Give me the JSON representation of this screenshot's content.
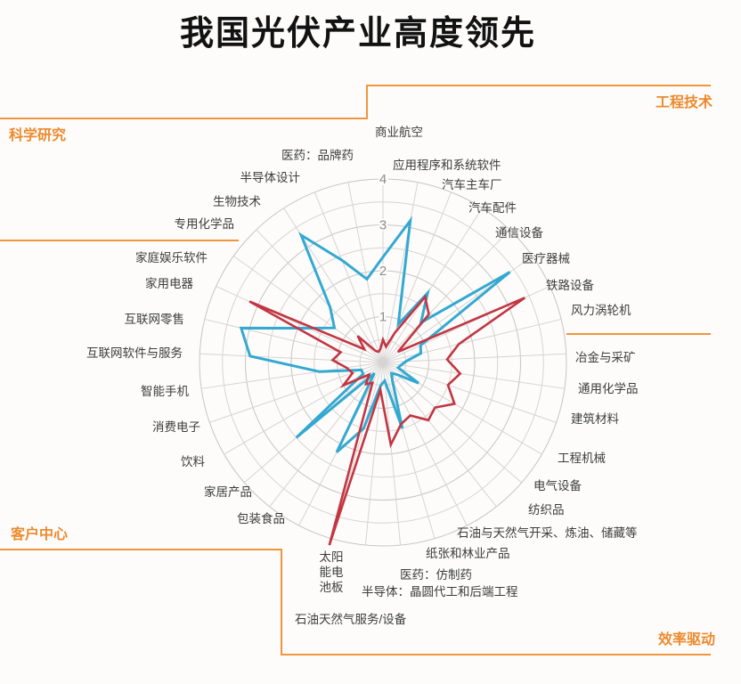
{
  "title": "我国光伏产业高度领先",
  "corner_labels": {
    "top_left": "科学研究",
    "top_right": "工程技术",
    "bottom_left": "客户中心",
    "bottom_right": "效率驱动"
  },
  "colors": {
    "red": "#C23642",
    "blue": "#33A9D1",
    "orange": "#ED8A2D",
    "grid": "#d6d4d2",
    "axis_label": "#3d3d3d",
    "tick": "#8c8c8c",
    "title": "#121212"
  },
  "chart_data": {
    "type": "radar",
    "title": "我国光伏产业高度领先",
    "axes_count": 33,
    "max": 4,
    "ring_step": 0.5,
    "ring_labels": [
      "1",
      "2",
      "3",
      "4"
    ],
    "grid": "on",
    "legend": "none",
    "categories": [
      "商业航空",
      "应用程序和系统软件",
      "汽车主车厂",
      "汽车配件",
      "通信设备",
      "医疗器械",
      "铁路设备",
      "风力涡轮机",
      "冶金与采矿",
      "通用化学品",
      "建筑材料",
      "工程机械",
      "电气设备",
      "纺织品",
      "石油与天然气开采、炼油、储藏等",
      "纸张和林业产品",
      "医药：仿制药",
      "半导体：晶圆代工和后端工程",
      "太阳能电池板",
      "石油天然气服务/设备",
      "包装食品",
      "家居产品",
      "饮料",
      "消费电子",
      "智能手机",
      "互联网软件与服务",
      "互联网零售",
      "家用电器",
      "家庭娱乐软件",
      "专用化学品",
      "生物技术",
      "半导体设计",
      "医药：品牌药"
    ],
    "series": [
      {
        "id": "blue",
        "color": "#33A9D1",
        "values": [
          2.3,
          3.15,
          0.9,
          1.8,
          1.2,
          3.4,
          0.9,
          0.85,
          0.5,
          0.4,
          0.35,
          0.9,
          0.4,
          0.3,
          0.45,
          1.5,
          0.4,
          0.5,
          1.5,
          2.2,
          0.3,
          2.5,
          0.5,
          0.5,
          1.4,
          2.9,
          3.18,
          1.8,
          1.3,
          1.67,
          3.3,
          2.4,
          1.85
        ]
      },
      {
        "id": "red",
        "color": "#C23642",
        "values": [
          0.5,
          0.35,
          0.7,
          1.7,
          1.45,
          0.4,
          3.4,
          1.7,
          1.4,
          1.7,
          1.5,
          1.8,
          1.5,
          1.6,
          1.3,
          1.4,
          1.8,
          0.6,
          4.15,
          0.5,
          0.6,
          0.4,
          1.0,
          0.7,
          0.8,
          1.1,
          0.95,
          3.2,
          0.5,
          0.8,
          0.3,
          0.25,
          0.3
        ]
      }
    ]
  }
}
